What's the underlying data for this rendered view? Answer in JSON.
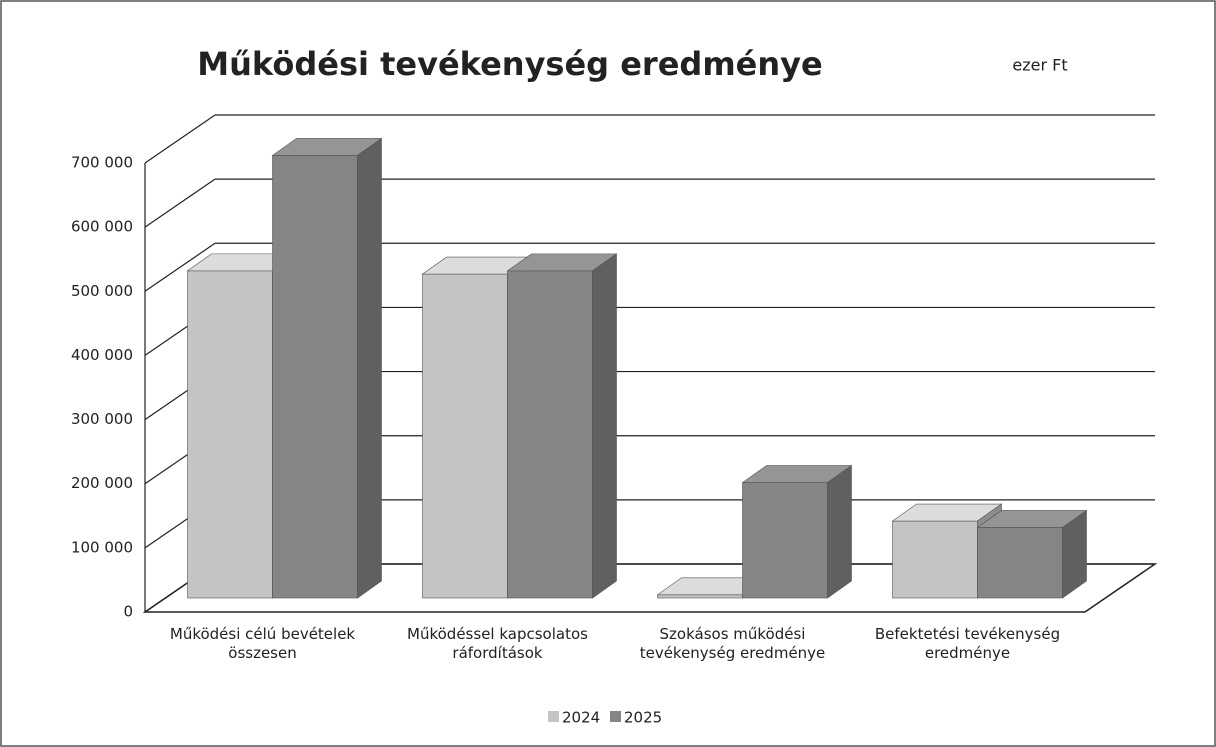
{
  "chart_data": {
    "type": "bar3d",
    "title": "Működési tevékenység eredménye",
    "subtitle": "ezer Ft",
    "categories": [
      "Működési célú bevételek összesen",
      "Működéssel kapcsolatos ráfordítások",
      "Szokásos működési tevékenység eredménye",
      "Befektetési tevékenység eredménye"
    ],
    "series": [
      {
        "name": "2024",
        "color": "#c4c4c4",
        "values": [
          510000,
          505000,
          5000,
          120000
        ]
      },
      {
        "name": "2025",
        "color": "#858585",
        "values": [
          690000,
          510000,
          180000,
          110000
        ]
      }
    ],
    "ylim": [
      0,
      700000
    ],
    "yticks": [
      0,
      {
        "value": 100000,
        "label": "100 000"
      },
      {
        "value": 200000,
        "label": "200 000"
      },
      {
        "value": 300000,
        "label": "300 000"
      },
      {
        "value": 400000,
        "label": "400 000"
      },
      {
        "value": 500000,
        "label": "500 000"
      },
      {
        "value": 600000,
        "label": "600 000"
      },
      {
        "value": 700000,
        "label": "700 000"
      }
    ],
    "grid": true,
    "legend": "bottom"
  }
}
